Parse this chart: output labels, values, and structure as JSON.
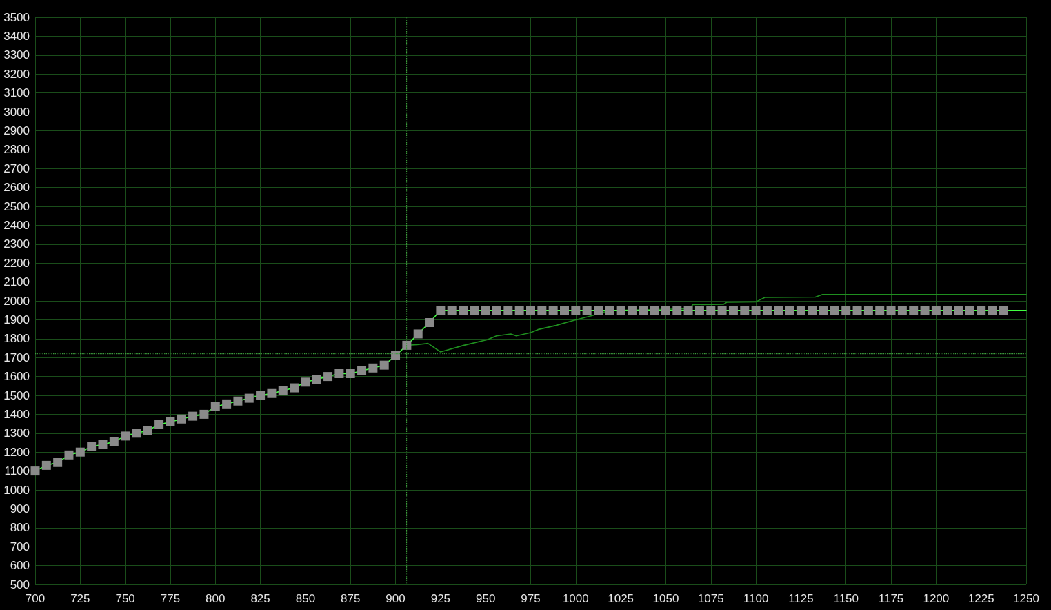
{
  "chart_data": {
    "type": "line",
    "xlim": [
      700,
      1250
    ],
    "ylim": [
      500,
      3500
    ],
    "xticks": [
      700,
      725,
      750,
      775,
      800,
      825,
      850,
      875,
      900,
      925,
      950,
      975,
      1000,
      1025,
      1050,
      1075,
      1100,
      1125,
      1150,
      1175,
      1200,
      1225,
      1250
    ],
    "yticks": [
      500,
      600,
      700,
      800,
      900,
      1000,
      1100,
      1200,
      1300,
      1400,
      1500,
      1600,
      1700,
      1800,
      1900,
      2000,
      2100,
      2200,
      2300,
      2400,
      2500,
      2600,
      2700,
      2800,
      2900,
      3000,
      3100,
      3200,
      3300,
      3400,
      3500
    ],
    "grid": true,
    "marker": "none",
    "line_style": "solid",
    "series": [
      {
        "color": "#1f8f1f",
        "x": [
          906,
          912,
          918,
          925,
          938,
          951,
          956,
          964,
          967,
          975,
          979,
          989,
          999,
          1010,
          1015,
          1022,
          1063,
          1065,
          1082,
          1084,
          1100,
          1105,
          1133,
          1137,
          1250
        ],
        "values": [
          1765,
          1768,
          1775,
          1730,
          1765,
          1795,
          1815,
          1825,
          1815,
          1832,
          1848,
          1870,
          1897,
          1924,
          1940,
          1950,
          1958,
          1980,
          1982,
          1993,
          1995,
          2018,
          2020,
          2034,
          2034
        ]
      },
      {
        "color": "#40ff40",
        "x": [
          700,
          706.25,
          712.5,
          718.75,
          725,
          731.25,
          737.5,
          743.75,
          750,
          756.25,
          762.5,
          768.75,
          775,
          781.25,
          787.5,
          793.75,
          800,
          806.25,
          812.5,
          818.75,
          825,
          831.25,
          837.5,
          843.75,
          850,
          856.25,
          862.5,
          868.75,
          875,
          881.25,
          887.5,
          893.75,
          900,
          906.25,
          912.5,
          918.75,
          925,
          931.25,
          937.5,
          943.75,
          950,
          956.25,
          962.5,
          968.75,
          975,
          981.25,
          987.5,
          993.75,
          1000,
          1006.25,
          1012.5,
          1018.75,
          1025,
          1031.25,
          1037.5,
          1043.75,
          1050,
          1056.25,
          1062.5,
          1068.75,
          1075,
          1081.25,
          1087.5,
          1093.75,
          1100,
          1106.25,
          1112.5,
          1118.75,
          1125,
          1131.25,
          1137.5,
          1143.75,
          1150,
          1156.25,
          1162.5,
          1168.75,
          1175,
          1181.25,
          1187.5,
          1193.75,
          1200,
          1206.25,
          1212.5,
          1218.75,
          1225,
          1231.25,
          1237.5,
          1250
        ],
        "values": [
          1100,
          1130,
          1145,
          1185,
          1200,
          1230,
          1240,
          1255,
          1285,
          1300,
          1315,
          1345,
          1360,
          1375,
          1390,
          1400,
          1440,
          1455,
          1470,
          1485,
          1500,
          1510,
          1525,
          1540,
          1570,
          1585,
          1600,
          1615,
          1615,
          1630,
          1645,
          1660,
          1710,
          1765,
          1825,
          1885,
          1950,
          1950,
          1950,
          1950,
          1950,
          1950,
          1950,
          1950,
          1950,
          1950,
          1950,
          1950,
          1950,
          1950,
          1950,
          1950,
          1950,
          1950,
          1950,
          1950,
          1950,
          1950,
          1950,
          1950,
          1950,
          1950,
          1950,
          1950,
          1950,
          1950,
          1950,
          1950,
          1950,
          1950,
          1950,
          1950,
          1950,
          1950,
          1950,
          1950,
          1950,
          1950,
          1950,
          1950,
          1950,
          1950,
          1950,
          1950,
          1950,
          1950,
          1950,
          1950
        ]
      },
      {
        "type": "scatter",
        "color": "#8a8a8a",
        "marker": "square",
        "x": [
          700,
          706.25,
          712.5,
          718.75,
          725,
          731.25,
          737.5,
          743.75,
          750,
          756.25,
          762.5,
          768.75,
          775,
          781.25,
          787.5,
          793.75,
          800,
          806.25,
          812.5,
          818.75,
          825,
          831.25,
          837.5,
          843.75,
          850,
          856.25,
          862.5,
          868.75,
          875,
          881.25,
          887.5,
          893.75,
          900,
          906.25,
          912.5,
          918.75,
          925,
          931.25,
          937.5,
          943.75,
          950,
          956.25,
          962.5,
          968.75,
          975,
          981.25,
          987.5,
          993.75,
          1000,
          1006.25,
          1012.5,
          1018.75,
          1025,
          1031.25,
          1037.5,
          1043.75,
          1050,
          1056.25,
          1062.5,
          1068.75,
          1075,
          1081.25,
          1087.5,
          1093.75,
          1100,
          1106.25,
          1112.5,
          1118.75,
          1125,
          1131.25,
          1137.5,
          1143.75,
          1150,
          1156.25,
          1162.5,
          1168.75,
          1175,
          1181.25,
          1187.5,
          1193.75,
          1200,
          1206.25,
          1212.5,
          1218.75,
          1225,
          1231.25,
          1237.5
        ],
        "values": [
          1100,
          1130,
          1145,
          1185,
          1200,
          1230,
          1240,
          1255,
          1285,
          1300,
          1315,
          1345,
          1360,
          1375,
          1390,
          1400,
          1440,
          1455,
          1470,
          1485,
          1500,
          1510,
          1525,
          1540,
          1570,
          1585,
          1600,
          1615,
          1615,
          1630,
          1645,
          1660,
          1710,
          1765,
          1825,
          1885,
          1950,
          1950,
          1950,
          1950,
          1950,
          1950,
          1950,
          1950,
          1950,
          1950,
          1950,
          1950,
          1950,
          1950,
          1950,
          1950,
          1950,
          1950,
          1950,
          1950,
          1950,
          1950,
          1950,
          1950,
          1950,
          1950,
          1950,
          1950,
          1950,
          1950,
          1950,
          1950,
          1950,
          1950,
          1950,
          1950,
          1950,
          1950,
          1950,
          1950,
          1950,
          1950,
          1950,
          1950,
          1950,
          1950,
          1950,
          1950,
          1950,
          1950,
          1950
        ]
      }
    ],
    "ref_lines": [
      {
        "axis": "x",
        "value": 906,
        "color": "#3c9c3c",
        "line_style": "dotted"
      },
      {
        "axis": "y",
        "value": 1720,
        "color": "#3c9c3c",
        "line_style": "dotted"
      }
    ]
  }
}
